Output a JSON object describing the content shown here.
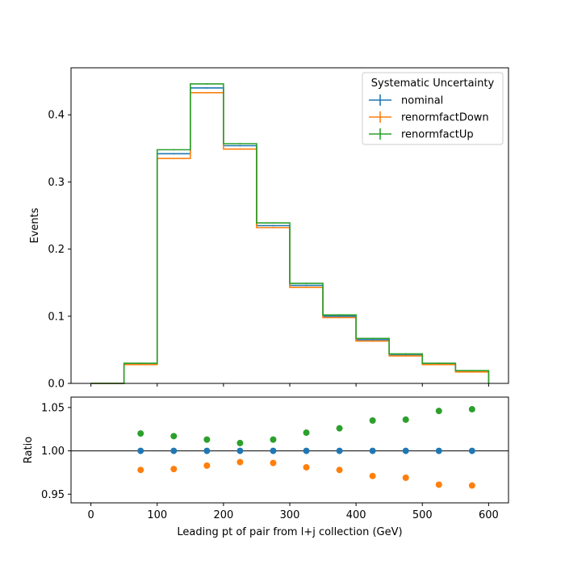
{
  "chart_data": {
    "type": "histogram-ratio",
    "xlabel": "Leading pt of pair from l+j collection (GeV)",
    "bin_edges": [
      0,
      50,
      100,
      150,
      200,
      250,
      300,
      350,
      400,
      450,
      500,
      550,
      600
    ],
    "top": {
      "ylabel": "Events",
      "ylim": [
        0,
        0.47
      ],
      "yticks": [
        0.0,
        0.1,
        0.2,
        0.3,
        0.4
      ],
      "ytick_labels": [
        "0.0",
        "0.1",
        "0.2",
        "0.3",
        "0.4"
      ],
      "legend": {
        "title": "Systematic Uncertainty",
        "placement": "top-right"
      },
      "series": [
        {
          "name": "nominal",
          "color": "#1f77b4",
          "values": [
            0.0,
            0.029,
            0.342,
            0.44,
            0.354,
            0.235,
            0.146,
            0.1,
            0.065,
            0.042,
            0.029,
            0.018
          ]
        },
        {
          "name": "renormfactDown",
          "color": "#ff7f0e",
          "values": [
            0.0,
            0.028,
            0.335,
            0.433,
            0.349,
            0.232,
            0.143,
            0.098,
            0.063,
            0.041,
            0.028,
            0.017
          ]
        },
        {
          "name": "renormfactUp",
          "color": "#2ca02c",
          "values": [
            0.0,
            0.03,
            0.348,
            0.446,
            0.357,
            0.239,
            0.149,
            0.102,
            0.067,
            0.044,
            0.03,
            0.019
          ]
        }
      ]
    },
    "bottom": {
      "ylabel": "Ratio",
      "ylim": [
        0.94,
        1.062
      ],
      "yticks": [
        0.95,
        1.0,
        1.05
      ],
      "ytick_labels": [
        "0.95",
        "1.00",
        "1.05"
      ],
      "reference_line": 1.0,
      "x": [
        75,
        125,
        175,
        225,
        275,
        325,
        375,
        425,
        475,
        525,
        575
      ],
      "series": [
        {
          "name": "nominal",
          "color": "#1f77b4",
          "values": [
            1.0,
            1.0,
            1.0,
            1.0,
            1.0,
            1.0,
            1.0,
            1.0,
            1.0,
            1.0,
            1.0
          ]
        },
        {
          "name": "renormfactDown",
          "color": "#ff7f0e",
          "values": [
            0.978,
            0.979,
            0.983,
            0.987,
            0.986,
            0.981,
            0.978,
            0.971,
            0.969,
            0.961,
            0.96
          ]
        },
        {
          "name": "renormfactUp",
          "color": "#2ca02c",
          "values": [
            1.02,
            1.017,
            1.013,
            1.009,
            1.013,
            1.021,
            1.026,
            1.035,
            1.036,
            1.046,
            1.048
          ]
        }
      ]
    },
    "xlim": [
      -30,
      630
    ],
    "xticks": [
      0,
      100,
      200,
      300,
      400,
      500,
      600
    ],
    "xtick_labels": [
      "0",
      "100",
      "200",
      "300",
      "400",
      "500",
      "600"
    ]
  }
}
